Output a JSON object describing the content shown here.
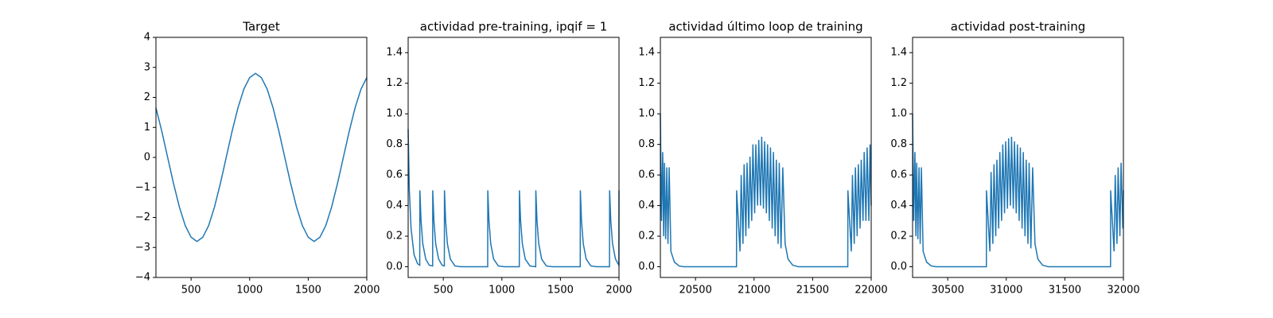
{
  "chart_data": [
    {
      "type": "line",
      "title": "Target",
      "color": "#1f77b4",
      "x": [
        200,
        250,
        300,
        350,
        400,
        450,
        500,
        550,
        600,
        650,
        700,
        750,
        800,
        850,
        900,
        950,
        1000,
        1050,
        1100,
        1150,
        1200,
        1250,
        1300,
        1350,
        1400,
        1450,
        1500,
        1550,
        1600,
        1650,
        1700,
        1750,
        1800,
        1850,
        1900,
        1950,
        2000
      ],
      "values": [
        1.65,
        0.87,
        0,
        -0.87,
        -1.65,
        -2.27,
        -2.66,
        -2.8,
        -2.66,
        -2.27,
        -1.65,
        -0.87,
        0,
        0.87,
        1.65,
        2.27,
        2.66,
        2.8,
        2.66,
        2.27,
        1.65,
        0.87,
        0,
        -0.87,
        -1.65,
        -2.27,
        -2.66,
        -2.8,
        -2.66,
        -2.27,
        -1.65,
        -0.87,
        0,
        0.87,
        1.65,
        2.27,
        2.66
      ],
      "xlim": [
        200,
        2000
      ],
      "xticks": [
        500,
        1000,
        1500,
        2000
      ],
      "ylim": [
        -4,
        4
      ],
      "yticks": [
        {
          "value": -4,
          "label": "−4"
        },
        {
          "value": -3,
          "label": "−3"
        },
        {
          "value": -2,
          "label": "−2"
        },
        {
          "value": -1,
          "label": "−1"
        },
        0,
        1,
        2,
        3,
        4
      ]
    },
    {
      "type": "line",
      "title": "actividad pre-training, ipqif = 1",
      "color": "#1f77b4",
      "x": [
        200,
        210,
        225,
        250,
        280,
        299,
        300,
        310,
        325,
        350,
        380,
        409,
        410,
        420,
        435,
        460,
        490,
        509,
        510,
        520,
        535,
        560,
        600,
        650,
        879,
        880,
        890,
        905,
        930,
        970,
        1020,
        1149,
        1150,
        1160,
        1175,
        1200,
        1240,
        1289,
        1290,
        1300,
        1315,
        1340,
        1380,
        1430,
        1669,
        1670,
        1680,
        1695,
        1720,
        1760,
        1810,
        1919,
        1920,
        1930,
        1945,
        1970,
        1999,
        2000
      ],
      "values": [
        0.9,
        0.5,
        0.25,
        0.08,
        0.02,
        0.01,
        0.5,
        0.3,
        0.15,
        0.05,
        0.01,
        0.005,
        0.5,
        0.3,
        0.15,
        0.05,
        0.01,
        0.005,
        0.5,
        0.3,
        0.15,
        0.05,
        0.005,
        0,
        0,
        0.5,
        0.3,
        0.15,
        0.05,
        0.005,
        0,
        0,
        0.5,
        0.3,
        0.15,
        0.05,
        0.005,
        0,
        0.5,
        0.3,
        0.15,
        0.05,
        0.005,
        0,
        0,
        0.5,
        0.3,
        0.15,
        0.05,
        0.005,
        0,
        0,
        0.5,
        0.3,
        0.15,
        0.05,
        0.01,
        0.5
      ],
      "xlim": [
        200,
        2000
      ],
      "xticks": [
        500,
        1000,
        1500,
        2000
      ],
      "ylim": [
        -0.07,
        1.5
      ],
      "yticks": [
        {
          "value": 0,
          "label": "0.0"
        },
        0.2,
        0.4,
        0.6,
        0.8,
        {
          "value": 1,
          "label": "1.0"
        },
        1.2,
        1.4
      ]
    },
    {
      "type": "line",
      "title": "actividad último loop de training",
      "color": "#1f77b4",
      "x": [
        20200,
        20210,
        20220,
        20228,
        20235,
        20245,
        20255,
        20265,
        20275,
        20290,
        20320,
        20360,
        20400,
        20850,
        20851,
        20880,
        20890,
        20905,
        20915,
        20930,
        20940,
        20955,
        20965,
        20980,
        20990,
        21005,
        21015,
        21030,
        21040,
        21055,
        21065,
        21080,
        21090,
        21105,
        21115,
        21130,
        21140,
        21155,
        21165,
        21180,
        21190,
        21205,
        21215,
        21230,
        21245,
        21265,
        21290,
        21330,
        21380,
        21800,
        21801,
        21830,
        21840,
        21855,
        21865,
        21880,
        21890,
        21905,
        21915,
        21930,
        21940,
        21955,
        21965,
        21980,
        21990,
        22000
      ],
      "values": [
        1.0,
        0.3,
        0.75,
        0.2,
        0.68,
        0.18,
        0.65,
        0.15,
        0.65,
        0.1,
        0.03,
        0.005,
        0,
        0,
        0.5,
        0.1,
        0.6,
        0.15,
        0.67,
        0.2,
        0.68,
        0.25,
        0.72,
        0.3,
        0.8,
        0.35,
        0.8,
        0.4,
        0.83,
        0.4,
        0.85,
        0.38,
        0.82,
        0.35,
        0.8,
        0.3,
        0.78,
        0.25,
        0.75,
        0.2,
        0.7,
        0.15,
        0.68,
        0.12,
        0.65,
        0.15,
        0.05,
        0.01,
        0,
        0,
        0.5,
        0.1,
        0.6,
        0.15,
        0.65,
        0.2,
        0.67,
        0.25,
        0.7,
        0.3,
        0.75,
        0.3,
        0.78,
        0.3,
        0.8,
        0.4
      ],
      "xlim": [
        20200,
        22000
      ],
      "xticks": [
        20500,
        21000,
        21500,
        22000
      ],
      "ylim": [
        -0.07,
        1.5
      ],
      "yticks": [
        {
          "value": 0,
          "label": "0.0"
        },
        0.2,
        0.4,
        0.6,
        0.8,
        {
          "value": 1,
          "label": "1.0"
        },
        1.2,
        1.4
      ]
    },
    {
      "type": "line",
      "title": "actividad post-training",
      "color": "#1f77b4",
      "x": [
        30200,
        30210,
        30220,
        30228,
        30235,
        30245,
        30255,
        30265,
        30275,
        30290,
        30320,
        30360,
        30400,
        30830,
        30831,
        30860,
        30870,
        30885,
        30895,
        30910,
        30920,
        30935,
        30945,
        30960,
        30970,
        30985,
        30995,
        31010,
        31020,
        31035,
        31045,
        31060,
        31070,
        31085,
        31095,
        31110,
        31120,
        31135,
        31145,
        31160,
        31170,
        31185,
        31195,
        31210,
        31225,
        31245,
        31270,
        31310,
        31360,
        31890,
        31891,
        31920,
        31930,
        31945,
        31955,
        31970,
        31980,
        31995,
        32000
      ],
      "values": [
        1.0,
        0.3,
        0.75,
        0.2,
        0.68,
        0.18,
        0.65,
        0.15,
        0.65,
        0.1,
        0.03,
        0.005,
        0,
        0,
        0.5,
        0.1,
        0.62,
        0.15,
        0.67,
        0.2,
        0.7,
        0.25,
        0.75,
        0.3,
        0.8,
        0.35,
        0.82,
        0.38,
        0.84,
        0.4,
        0.85,
        0.38,
        0.82,
        0.35,
        0.8,
        0.3,
        0.78,
        0.25,
        0.75,
        0.2,
        0.7,
        0.15,
        0.68,
        0.12,
        0.65,
        0.15,
        0.05,
        0.01,
        0,
        0,
        0.5,
        0.1,
        0.6,
        0.15,
        0.65,
        0.2,
        0.68,
        0.25,
        0.5
      ],
      "xlim": [
        30200,
        32000
      ],
      "xticks": [
        30500,
        31000,
        31500,
        32000
      ],
      "ylim": [
        -0.07,
        1.5
      ],
      "yticks": [
        {
          "value": 0,
          "label": "0.0"
        },
        0.2,
        0.4,
        0.6,
        0.8,
        {
          "value": 1,
          "label": "1.0"
        },
        1.2,
        1.4
      ]
    }
  ]
}
